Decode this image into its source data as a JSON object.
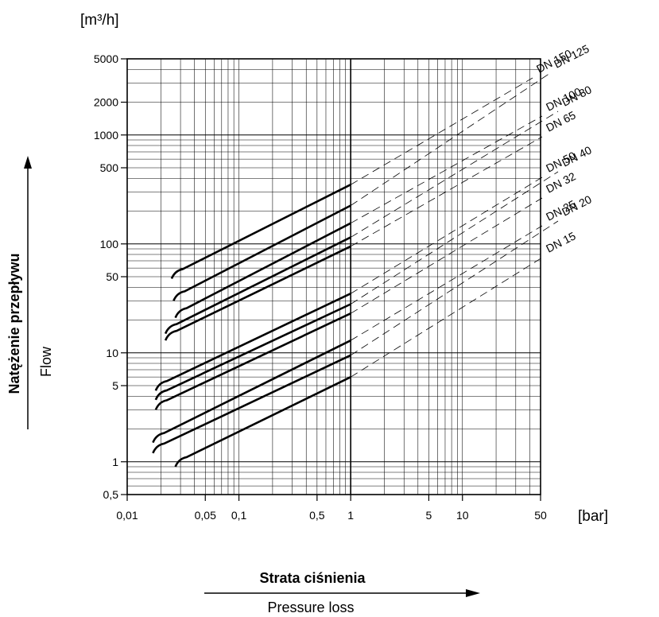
{
  "chart_data": {
    "type": "line",
    "x_scale": "log",
    "y_scale": "log",
    "xlim": [
      0.01,
      50
    ],
    "ylim": [
      0.5,
      5000
    ],
    "x_ticks": [
      "0,01",
      "0,05",
      "0,1",
      "0,5",
      "1",
      "5",
      "10",
      "50"
    ],
    "x_tick_values": [
      0.01,
      0.05,
      0.1,
      0.5,
      1,
      5,
      10,
      50
    ],
    "y_ticks": [
      "0,5",
      "1",
      "5",
      "10",
      "50",
      "100",
      "500",
      "1000",
      "2000",
      "5000"
    ],
    "y_tick_values": [
      0.5,
      1,
      5,
      10,
      50,
      100,
      500,
      1000,
      2000,
      5000
    ],
    "x_unit": "[bar]",
    "y_unit": "[m³/h]",
    "ylabel_pl": "Natężenie przepływu",
    "ylabel_en": "Flow",
    "xlabel_pl": "Strata ciśnienia",
    "xlabel_en": "Pressure loss",
    "grid": true,
    "line_style": "solid up to 1 bar, dashed extension beyond",
    "series": [
      {
        "name": "DN 150",
        "start_x": 0.025,
        "start_y": 48,
        "flow_at_1bar": 350
      },
      {
        "name": "DN 125",
        "start_x": 0.026,
        "start_y": 30,
        "flow_at_1bar": 225
      },
      {
        "name": "DN 100",
        "start_x": 0.027,
        "start_y": 21,
        "flow_at_1bar": 155
      },
      {
        "name": "DN 80",
        "start_x": 0.022,
        "start_y": 15,
        "flow_at_1bar": 115
      },
      {
        "name": "DN 65",
        "start_x": 0.022,
        "start_y": 13,
        "flow_at_1bar": 95
      },
      {
        "name": "DN 50",
        "start_x": 0.018,
        "start_y": 4.5,
        "flow_at_1bar": 35
      },
      {
        "name": "DN 40",
        "start_x": 0.018,
        "start_y": 3.7,
        "flow_at_1bar": 28
      },
      {
        "name": "DN 32",
        "start_x": 0.018,
        "start_y": 3,
        "flow_at_1bar": 23
      },
      {
        "name": "DN 25",
        "start_x": 0.017,
        "start_y": 1.5,
        "flow_at_1bar": 13
      },
      {
        "name": "DN 20",
        "start_x": 0.017,
        "start_y": 1.2,
        "flow_at_1bar": 9.5
      },
      {
        "name": "DN 15",
        "start_x": 0.027,
        "start_y": 0.9,
        "flow_at_1bar": 6
      }
    ]
  }
}
